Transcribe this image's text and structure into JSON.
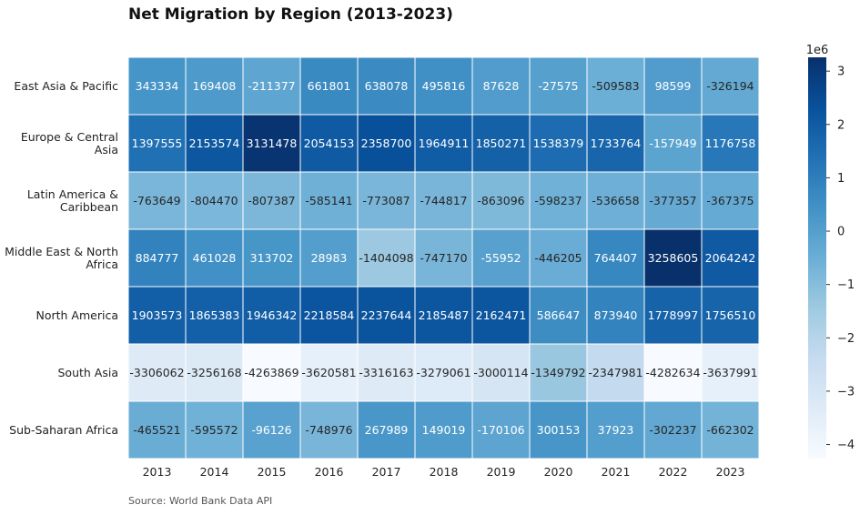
{
  "chart": {
    "title": "Net Migration by Region (2013-2023)",
    "source": "Source: World Bank Data API"
  },
  "chart_data": {
    "type": "heatmap",
    "title": "Net Migration by Region (2013-2023)",
    "x": [
      "2013",
      "2014",
      "2015",
      "2016",
      "2017",
      "2018",
      "2019",
      "2020",
      "2021",
      "2022",
      "2023"
    ],
    "y": [
      "East Asia & Pacific",
      "Europe & Central Asia",
      "Latin America & Caribbean",
      "Middle East & North Africa",
      "North America",
      "South Asia",
      "Sub-Saharan Africa"
    ],
    "row_label_lines": [
      [
        "East Asia & Pacific"
      ],
      [
        "Europe & Central",
        "Asia"
      ],
      [
        "Latin America &",
        "Caribbean"
      ],
      [
        "Middle East & North",
        "Africa"
      ],
      [
        "North America"
      ],
      [
        "South Asia"
      ],
      [
        "Sub-Saharan Africa"
      ]
    ],
    "values": [
      [
        343334,
        169408,
        -211377,
        661801,
        638078,
        495816,
        87628,
        -27575,
        -509583,
        98599,
        -326194
      ],
      [
        1397555,
        2153574,
        3131478,
        2054153,
        2358700,
        1964911,
        1850271,
        1538379,
        1733764,
        -157949,
        1176758
      ],
      [
        -763649,
        -804470,
        -807387,
        -585141,
        -773087,
        -744817,
        -863096,
        -598237,
        -536658,
        -377357,
        -367375
      ],
      [
        884777,
        461028,
        313702,
        28983,
        -1404098,
        -747170,
        -55952,
        -446205,
        764407,
        3258605,
        2064242
      ],
      [
        1903573,
        1865383,
        1946342,
        2218584,
        2237644,
        2185487,
        2162471,
        586647,
        873940,
        1778997,
        1756510
      ],
      [
        -3306062,
        -3256168,
        -4263869,
        -3620581,
        -3316163,
        -3279061,
        -3000114,
        -1349792,
        -2347981,
        -4282634,
        -3637991
      ],
      [
        -465521,
        -595572,
        -96126,
        -748976,
        267989,
        149019,
        -170106,
        300153,
        37923,
        -302237,
        -662302
      ]
    ],
    "colorbar": {
      "multiplier_label": "1e6",
      "ticks": [
        3,
        2,
        1,
        0,
        -1,
        -2,
        -3,
        -4
      ],
      "tick_labels": [
        "3",
        "2",
        "1",
        "0",
        "−1",
        "−2",
        "−3",
        "−4"
      ],
      "range": [
        -4263869,
        3258605
      ],
      "colormap": "Blues"
    }
  }
}
